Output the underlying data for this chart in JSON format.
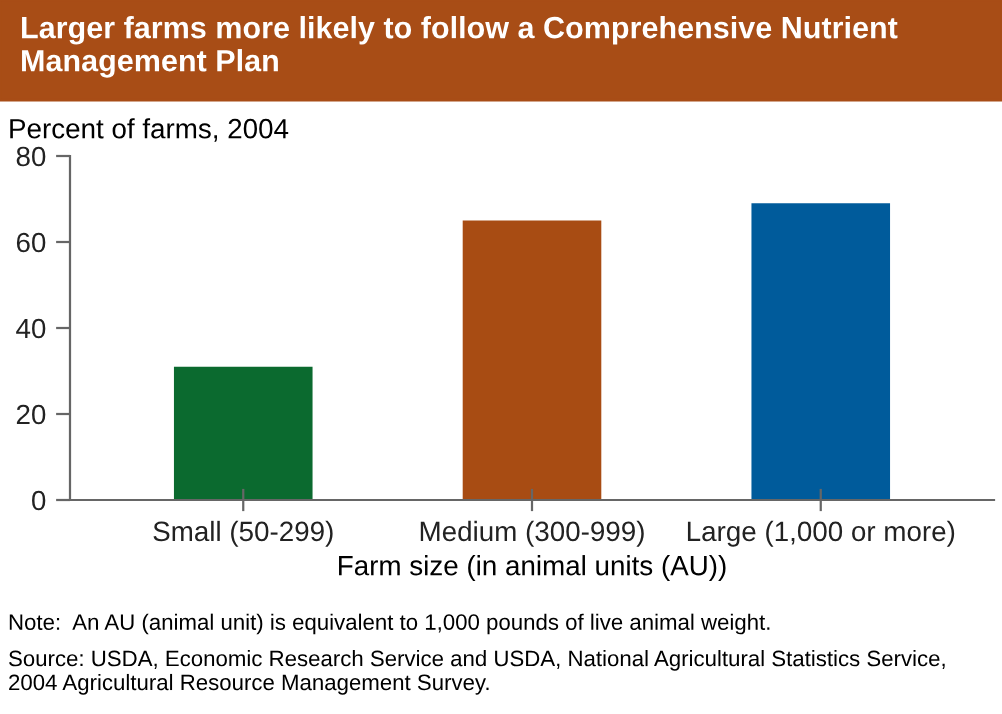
{
  "chart_data": {
    "type": "bar",
    "title": "Larger farms more likely to follow a Comprehensive Nutrient Management Plan",
    "ylabel": "Percent of farms, 2004",
    "xlabel": "Farm size (in animal units (AU))",
    "categories": [
      "Small (50-299)",
      "Medium (300-999)",
      "Large (1,000 or more)"
    ],
    "values": [
      31,
      65,
      69
    ],
    "colors": [
      "#0b6a2f",
      "#a84c13",
      "#005b9b"
    ],
    "ylim": [
      0,
      80
    ],
    "yticks": [
      0,
      20,
      40,
      60,
      80
    ],
    "grid": false,
    "legend": false,
    "annotations": [
      "Note:  An AU (animal unit) is equivalent to 1,000 pounds of live animal weight.",
      "Source: USDA, Economic Research Service and USDA, National Agricultural Statistics Service, 2004 Agricultural Resource Management Survey."
    ]
  }
}
